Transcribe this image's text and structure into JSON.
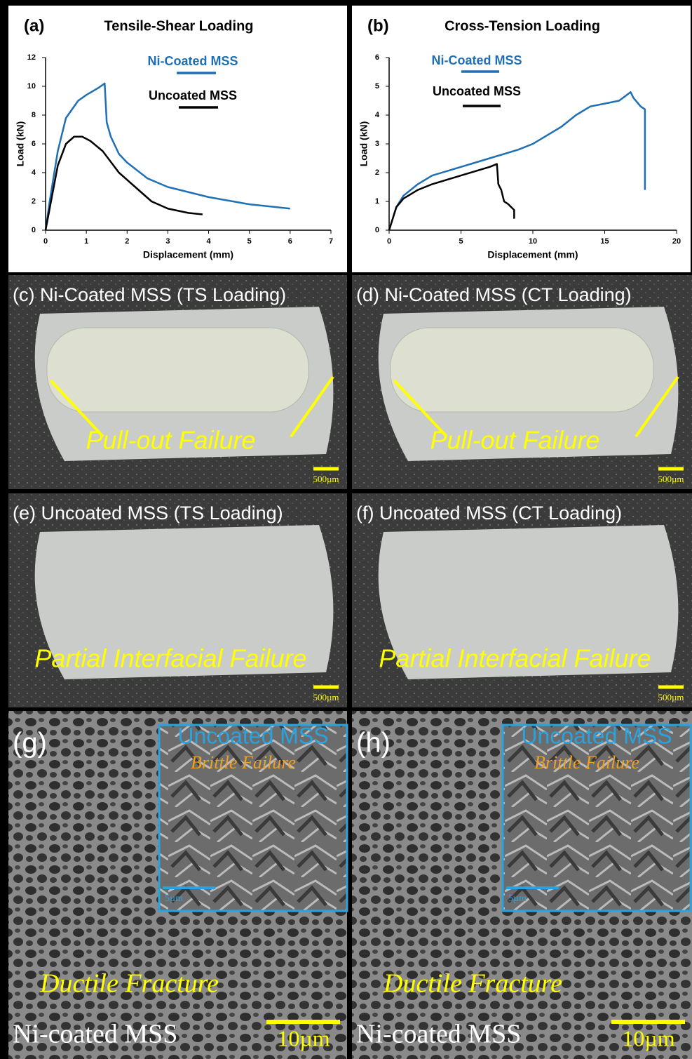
{
  "chart_data": [
    {
      "type": "line",
      "panel_label": "(a)",
      "title": "Tensile-Shear Loading",
      "xlabel": "Displacement (mm)",
      "ylabel": "Load (kN)",
      "xlim": [
        0,
        7
      ],
      "xticks": [
        0,
        1,
        2,
        3,
        4,
        5,
        6,
        7
      ],
      "ylim": [
        0,
        12
      ],
      "yticks": [
        0,
        2,
        4,
        6,
        8,
        10,
        12
      ],
      "series": [
        {
          "name": "Ni-Coated MSS",
          "color": "#1f6fb5",
          "x": [
            0,
            0.1,
            0.3,
            0.5,
            0.8,
            1.0,
            1.3,
            1.45,
            1.5,
            1.6,
            1.8,
            2.0,
            2.5,
            3,
            4,
            5,
            6
          ],
          "values": [
            0,
            2,
            5.5,
            7.8,
            9.0,
            9.4,
            9.9,
            10.2,
            7.5,
            6.5,
            5.3,
            4.7,
            3.6,
            3.0,
            2.3,
            1.8,
            1.5
          ]
        },
        {
          "name": "Uncoated MSS",
          "color": "#000000",
          "x": [
            0,
            0.1,
            0.3,
            0.5,
            0.7,
            0.9,
            1.1,
            1.4,
            1.8,
            2.2,
            2.6,
            3,
            3.5,
            3.85
          ],
          "values": [
            0,
            1.5,
            4.5,
            6.0,
            6.5,
            6.5,
            6.2,
            5.5,
            4.0,
            3.0,
            2.0,
            1.5,
            1.2,
            1.1
          ]
        }
      ]
    },
    {
      "type": "line",
      "panel_label": "(b)",
      "title": "Cross-Tension Loading",
      "xlabel": "Displacement (mm)",
      "ylabel": "Load (kN)",
      "xlim": [
        0,
        20
      ],
      "xticks": [
        0,
        5,
        10,
        15,
        20
      ],
      "ylim": [
        0,
        6
      ],
      "yticks": [
        0,
        1,
        2,
        3,
        4,
        5,
        6
      ],
      "series": [
        {
          "name": "Ni-Coated MSS",
          "color": "#1f6fb5",
          "x": [
            0,
            0.5,
            1,
            2,
            3,
            5,
            7,
            9,
            10,
            12,
            13,
            14,
            15,
            16,
            16.8,
            17,
            17.5,
            17.8,
            17.8
          ],
          "values": [
            0,
            0.8,
            1.2,
            1.6,
            1.9,
            2.2,
            2.5,
            2.8,
            3.0,
            3.6,
            4.0,
            4.3,
            4.4,
            4.5,
            4.8,
            4.6,
            4.3,
            4.2,
            1.4
          ]
        },
        {
          "name": "Uncoated MSS",
          "color": "#000000",
          "x": [
            0,
            0.5,
            1,
            2,
            3,
            5,
            7,
            7.5,
            7.6,
            7.8,
            8,
            8.3,
            8.5,
            8.7,
            8.7
          ],
          "values": [
            0,
            0.8,
            1.1,
            1.4,
            1.6,
            1.9,
            2.2,
            2.3,
            1.6,
            1.4,
            1.0,
            0.9,
            0.8,
            0.7,
            0.4
          ]
        }
      ]
    }
  ],
  "panels": [
    {
      "label": "(c) Ni-Coated MSS (TS Loading)",
      "annotation": "Pull-out Failure",
      "scale_bar": "500µm"
    },
    {
      "label": "(d) Ni-Coated MSS (CT Loading)",
      "annotation": "Pull-out Failure",
      "scale_bar": "500µm"
    },
    {
      "label": "(e) Uncoated MSS (TS Loading)",
      "annotation": "Partial Interfacial Failure",
      "scale_bar": "500µm"
    },
    {
      "label": "(f)  Uncoated MSS (CT Loading)",
      "annotation": "Partial Interfacial Failure",
      "scale_bar": "500µm"
    },
    {
      "label": "(g)",
      "inset_label": "Uncoated MSS",
      "inset_annotation": "Brittle Failure",
      "inset_scale_bar": "5µm",
      "annotation": "Ductile Fracture",
      "caption": "Ni-coated MSS",
      "scale_bar": "10µm"
    },
    {
      "label": "(h)",
      "inset_label": "Uncoated MSS",
      "inset_annotation": "Brittle Failure",
      "inset_scale_bar": "5µm",
      "annotation": "Ductile Fracture",
      "caption": "Ni-coated MSS",
      "scale_bar": "10µm"
    }
  ]
}
